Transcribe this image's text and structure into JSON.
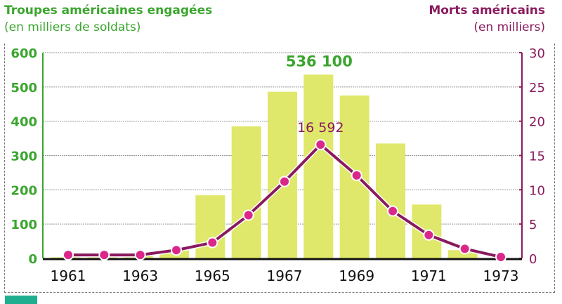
{
  "chart_data": {
    "type": "bar+line",
    "left_title": "Troupes américaines engagées",
    "left_subtitle": "(en milliers de soldats)",
    "right_title": "Morts américains",
    "right_subtitle": "(en milliers)",
    "years": [
      1961,
      1962,
      1963,
      1964,
      1965,
      1966,
      1967,
      1968,
      1969,
      1970,
      1971,
      1972,
      1973
    ],
    "x_tick_labels": [
      "1961",
      "1963",
      "1965",
      "1967",
      "1969",
      "1971",
      "1973"
    ],
    "series": [
      {
        "name": "Troupes américaines engagées",
        "axis": "left",
        "kind": "bar",
        "color": "#dfe86a",
        "values": [
          3,
          11,
          16,
          23,
          184,
          385,
          486,
          536,
          475,
          335,
          157,
          24,
          0
        ]
      },
      {
        "name": "Morts américains",
        "axis": "right",
        "kind": "line",
        "color": "#d9288a",
        "values": [
          0.5,
          0.5,
          0.5,
          1.2,
          2.3,
          6.3,
          11.2,
          16.592,
          12.1,
          6.9,
          3.4,
          1.4,
          0.2
        ]
      }
    ],
    "left_axis": {
      "ylim": [
        0,
        600
      ],
      "ticks": [
        0,
        100,
        200,
        300,
        400,
        500,
        600
      ],
      "color": "#3aa52e"
    },
    "right_axis": {
      "ylim": [
        0,
        30
      ],
      "ticks": [
        0,
        5,
        10,
        15,
        20,
        25,
        30
      ],
      "color": "#8a1a5e"
    },
    "annotations": {
      "peak_troops": "536 100",
      "peak_deaths": "16 592"
    },
    "grid": true
  }
}
